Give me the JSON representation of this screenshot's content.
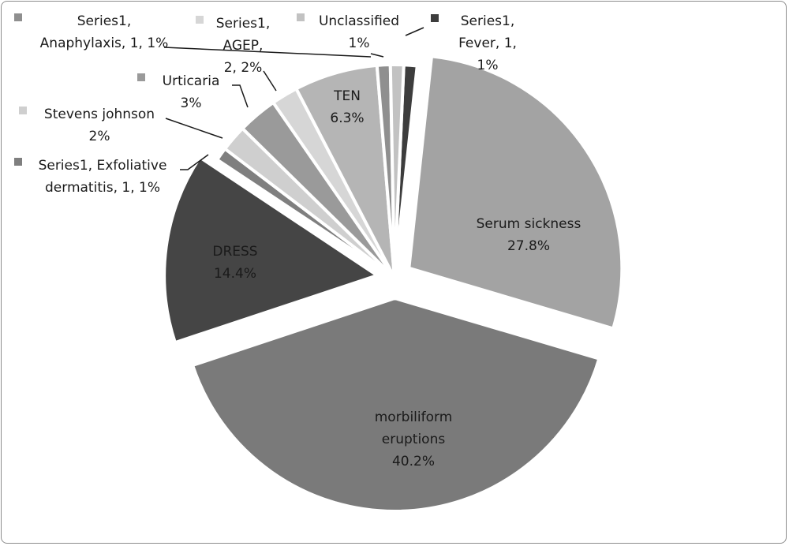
{
  "chart_data": {
    "type": "pie",
    "title": "",
    "slices": [
      {
        "label": "Fever",
        "value": 1,
        "percent": 1.0,
        "color": "#3d3d3d",
        "label_lines": [
          "Series1,",
          "Fever, 1,",
          "1%"
        ]
      },
      {
        "label": "Serum sickness",
        "value": 27.8,
        "percent": 27.8,
        "color": "#a3a3a3",
        "label_lines": [
          "Serum sickness",
          "27.8%"
        ]
      },
      {
        "label": "morbiliform eruptions",
        "value": 40.2,
        "percent": 40.2,
        "color": "#7a7a7a",
        "label_lines": [
          "morbiliform",
          "eruptions",
          "40.2%"
        ]
      },
      {
        "label": "DRESS",
        "value": 14.4,
        "percent": 14.4,
        "color": "#454545",
        "label_lines": [
          "DRESS",
          "14.4%"
        ]
      },
      {
        "label": "Exfoliative dermatitis",
        "value": 1,
        "percent": 1.0,
        "color": "#7f7f7f",
        "label_lines": [
          "Series1, Exfoliative",
          "dermatitis, 1, 1%"
        ]
      },
      {
        "label": "Stevens johnson",
        "value": 2,
        "percent": 2.0,
        "color": "#cfcfcf",
        "label_lines": [
          "Stevens johnson",
          "2%"
        ]
      },
      {
        "label": "Urticaria",
        "value": 3,
        "percent": 3.0,
        "color": "#9a9a9a",
        "label_lines": [
          "Urticaria",
          "3%"
        ]
      },
      {
        "label": "AGEP",
        "value": 2,
        "percent": 2.0,
        "color": "#d6d6d6",
        "label_lines": [
          "Series1,",
          "AGEP,",
          "2, 2%"
        ]
      },
      {
        "label": "TEN",
        "value": 6.3,
        "percent": 6.3,
        "color": "#b5b5b5",
        "label_lines": [
          "TEN",
          "6.3%"
        ]
      },
      {
        "label": "Anaphylaxis",
        "value": 1,
        "percent": 1.0,
        "color": "#8f8f8f",
        "label_lines": [
          "Series1,",
          "Anaphylaxis, 1, 1%"
        ]
      },
      {
        "label": "Unclassified",
        "value": 1,
        "percent": 1.0,
        "color": "#c2c2c2",
        "label_lines": [
          "Unclassified",
          "1%"
        ]
      }
    ]
  }
}
